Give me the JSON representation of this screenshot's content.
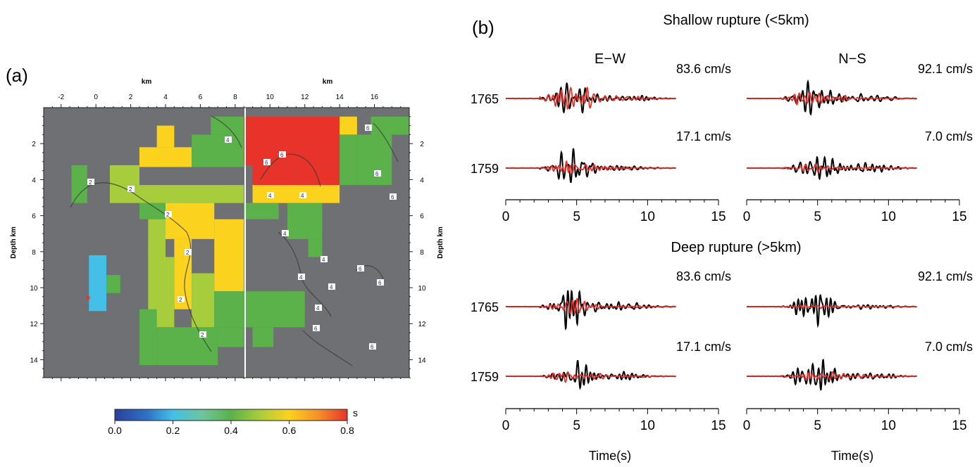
{
  "panel_a": {
    "label": "(a)",
    "x_axis_label": "km",
    "y_axis_label": "Depth km",
    "colorbar_unit": "s",
    "colorbar_ticks": [
      "0.0",
      "0.2",
      "0.4",
      "0.6",
      "0.8"
    ],
    "x_ticks_left": [
      "-2",
      "0",
      "2",
      "4",
      "6",
      "8"
    ],
    "x_ticks_right": [
      "10",
      "12",
      "14",
      "16"
    ],
    "y_ticks": [
      "2",
      "4",
      "6",
      "8",
      "10",
      "12",
      "14"
    ]
  },
  "panel_b": {
    "label": "(b)",
    "shallow_title": "Shallow rupture (<5km)",
    "deep_title": "Deep rupture (>5km)",
    "col_ew": "E−W",
    "col_ns": "N−S",
    "time_label": "Time(s)",
    "time_ticks": [
      "0",
      "5",
      "10",
      "15"
    ],
    "stations": [
      "1765",
      "1759"
    ],
    "amplitudes": {
      "ew_1765": "83.6 cm/s",
      "ns_1765": "92.1 cm/s",
      "ew_1759": "17.1 cm/s",
      "ns_1759": "7.0 cm/s"
    }
  },
  "colors": {
    "observed": "#000000",
    "synthetic": "#e8302a",
    "background_region": "#6e7073"
  },
  "chart_data": [
    {
      "type": "heatmap",
      "panel": "(a)",
      "xlabel": "km",
      "ylabel": "Depth km",
      "xlim": [
        -3,
        18
      ],
      "ylim": [
        15,
        0
      ],
      "colorbar": {
        "range": [
          0.0,
          0.8
        ],
        "unit": "s"
      },
      "note": "rupture duration (s) on fault sub-cells; gray = no slip",
      "cells": [
        {
          "x": 6.75,
          "y": 1.5,
          "v": 0.45
        },
        {
          "x": 7.5,
          "y": 1.5,
          "v": 0.5
        },
        {
          "x": 9.0,
          "y": 1.5,
          "v": 0.8
        },
        {
          "x": 9.75,
          "y": 1.5,
          "v": 0.8
        },
        {
          "x": 10.5,
          "y": 1.5,
          "v": 0.8
        },
        {
          "x": 11.25,
          "y": 1.5,
          "v": 0.8
        },
        {
          "x": 12.0,
          "y": 1.5,
          "v": 0.8
        },
        {
          "x": 12.75,
          "y": 1.5,
          "v": 0.8
        },
        {
          "x": 13.5,
          "y": 1.5,
          "v": 0.8
        },
        {
          "x": 14.25,
          "y": 1.5,
          "v": 0.6
        },
        {
          "x": 3.75,
          "y": 2.5,
          "v": 0.6
        },
        {
          "x": 10.5,
          "y": 2.5,
          "v": 0.8
        },
        {
          "x": 12.0,
          "y": 2.5,
          "v": 0.8
        },
        {
          "x": 15.75,
          "y": 2.5,
          "v": 0.45
        },
        {
          "x": 16.5,
          "y": 2.5,
          "v": 0.4
        },
        {
          "x": 17.25,
          "y": 2.5,
          "v": 0.4
        },
        {
          "x": 0.0,
          "y": 4.0,
          "v": 0.4
        },
        {
          "x": 2.25,
          "y": 4.0,
          "v": 0.5
        },
        {
          "x": 3.75,
          "y": 4.0,
          "v": 0.5
        },
        {
          "x": 6.0,
          "y": 4.0,
          "v": 0.45
        },
        {
          "x": 10.5,
          "y": 4.0,
          "v": 0.8
        },
        {
          "x": 12.0,
          "y": 4.0,
          "v": 0.8
        },
        {
          "x": 13.5,
          "y": 4.0,
          "v": 0.6
        },
        {
          "x": 6.0,
          "y": 5.5,
          "v": 0.5
        },
        {
          "x": 9.75,
          "y": 5.5,
          "v": 0.45
        },
        {
          "x": 12.0,
          "y": 5.5,
          "v": 0.45
        },
        {
          "x": 4.5,
          "y": 6.5,
          "v": 0.6
        },
        {
          "x": 6.0,
          "y": 6.5,
          "v": 0.45
        },
        {
          "x": 7.5,
          "y": 7.5,
          "v": 0.6
        },
        {
          "x": 5.25,
          "y": 8.5,
          "v": 0.5
        },
        {
          "x": 6.75,
          "y": 8.5,
          "v": 0.6
        },
        {
          "x": 12.0,
          "y": 8.0,
          "v": 0.45
        },
        {
          "x": 0.0,
          "y": 10.0,
          "v": 0.2
        },
        {
          "x": 1.0,
          "y": 10.0,
          "v": 0.4
        },
        {
          "x": 6.0,
          "y": 9.5,
          "v": 0.6
        },
        {
          "x": 10.5,
          "y": 11.0,
          "v": 0.5
        },
        {
          "x": 5.25,
          "y": 12.0,
          "v": 0.5
        },
        {
          "x": 3.75,
          "y": 13.0,
          "v": 0.45
        },
        {
          "x": 4.5,
          "y": 14.0,
          "v": 0.4
        },
        {
          "x": 6.0,
          "y": 14.0,
          "v": 0.4
        }
      ]
    },
    {
      "type": "line",
      "panel": "(b)",
      "xlabel": "Time(s)",
      "xlim": [
        0,
        15
      ],
      "series": [
        {
          "name": "observed",
          "color": "#000000"
        },
        {
          "name": "synthetic",
          "color": "#e8302a"
        }
      ],
      "subplots": [
        {
          "group": "Shallow rupture (<5km)",
          "component": "E−W",
          "station": "1765",
          "peak": "83.6 cm/s"
        },
        {
          "group": "Shallow rupture (<5km)",
          "component": "N−S",
          "station": "1765",
          "peak": "92.1 cm/s"
        },
        {
          "group": "Shallow rupture (<5km)",
          "component": "E−W",
          "station": "1759",
          "peak": "17.1 cm/s"
        },
        {
          "group": "Shallow rupture (<5km)",
          "component": "N−S",
          "station": "1759",
          "peak": "7.0 cm/s"
        },
        {
          "group": "Deep rupture (>5km)",
          "component": "E−W",
          "station": "1765",
          "peak": "83.6 cm/s"
        },
        {
          "group": "Deep rupture (>5km)",
          "component": "N−S",
          "station": "1765",
          "peak": "92.1 cm/s"
        },
        {
          "group": "Deep rupture (>5km)",
          "component": "E−W",
          "station": "1759",
          "peak": "17.1 cm/s"
        },
        {
          "group": "Deep rupture (>5km)",
          "component": "N−S",
          "station": "1759",
          "peak": "7.0 cm/s"
        }
      ]
    }
  ]
}
